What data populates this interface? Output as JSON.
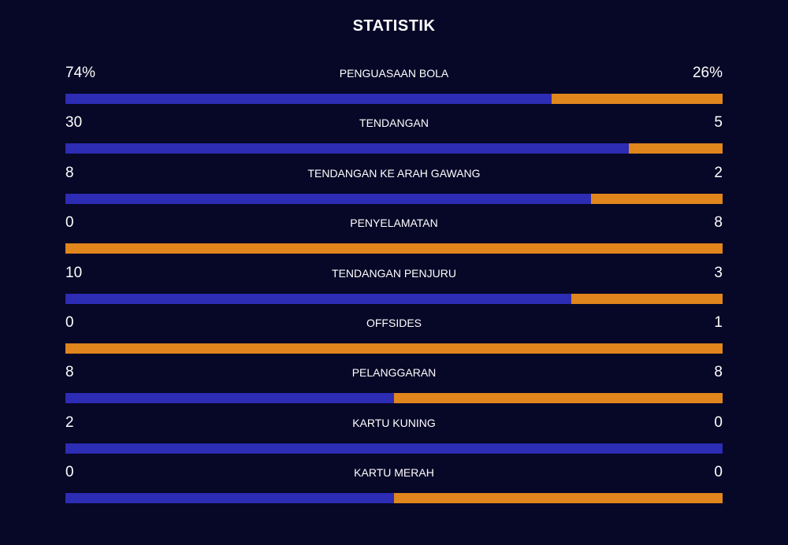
{
  "title": "STATISTIK",
  "colors": {
    "home": "#2c2cb4",
    "away": "#e0861c",
    "neutral": "#2c2cb4",
    "background": "#070727"
  },
  "stats": [
    {
      "label": "PENGUASAAN BOLA",
      "home_display": "74%",
      "away_display": "26%",
      "home": 74,
      "away": 26
    },
    {
      "label": "TENDANGAN",
      "home_display": "30",
      "away_display": "5",
      "home": 30,
      "away": 5
    },
    {
      "label": "TENDANGAN KE ARAH GAWANG",
      "home_display": "8",
      "away_display": "2",
      "home": 8,
      "away": 2
    },
    {
      "label": "PENYELAMATAN",
      "home_display": "0",
      "away_display": "8",
      "home": 0,
      "away": 8
    },
    {
      "label": "TENDANGAN PENJURU",
      "home_display": "10",
      "away_display": "3",
      "home": 10,
      "away": 3
    },
    {
      "label": "OFFSIDES",
      "home_display": "0",
      "away_display": "1",
      "home": 0,
      "away": 1
    },
    {
      "label": "PELANGGARAN",
      "home_display": "8",
      "away_display": "8",
      "home": 8,
      "away": 8
    },
    {
      "label": "KARTU KUNING",
      "home_display": "2",
      "away_display": "0",
      "home": 2,
      "away": 0
    },
    {
      "label": "KARTU MERAH",
      "home_display": "0",
      "away_display": "0",
      "home": 0,
      "away": 0
    }
  ]
}
